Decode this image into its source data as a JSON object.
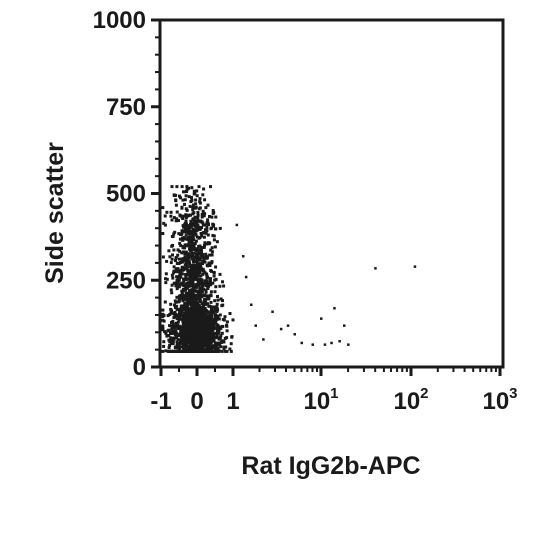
{
  "chart_data": {
    "type": "scatter",
    "title": "",
    "xlabel": "Rat IgG2b-APC",
    "ylabel": "Side scatter",
    "x_scale": "biexponential",
    "ylim": [
      0,
      1000
    ],
    "y_ticks": [
      {
        "value": 0,
        "label": "0"
      },
      {
        "value": 250,
        "label": "250"
      },
      {
        "value": 500,
        "label": "500"
      },
      {
        "value": 750,
        "label": "750"
      },
      {
        "value": 1000,
        "label": "1000"
      }
    ],
    "x_ticks": [
      {
        "value": -1,
        "label": "-1",
        "exp": ""
      },
      {
        "value": 0,
        "label": "0",
        "exp": ""
      },
      {
        "value": 1,
        "label": "1",
        "exp": ""
      },
      {
        "value": 10,
        "label": "10",
        "exp": "1"
      },
      {
        "value": 100,
        "label": "10",
        "exp": "2"
      },
      {
        "value": 1000,
        "label": "10",
        "exp": "3"
      }
    ],
    "grid": false,
    "legend": "none",
    "point_color": "#1a1a1a",
    "populations": [
      {
        "x_center": 0,
        "x_spread": 0.35,
        "y_center": 100,
        "y_spread": 45,
        "count": 1300
      },
      {
        "x_center": -0.15,
        "x_spread": 0.3,
        "y_center": 270,
        "y_spread": 90,
        "count": 700
      },
      {
        "x_center": -0.1,
        "x_spread": 0.3,
        "y_center": 430,
        "y_spread": 50,
        "count": 140
      }
    ],
    "sparse_points": [
      [
        1.1,
        410
      ],
      [
        1.3,
        320
      ],
      [
        1.4,
        260
      ],
      [
        1.6,
        180
      ],
      [
        1.8,
        120
      ],
      [
        2.2,
        80
      ],
      [
        2.8,
        160
      ],
      [
        3.5,
        110
      ],
      [
        4.2,
        120
      ],
      [
        5.0,
        95
      ],
      [
        6.0,
        70
      ],
      [
        8.0,
        65
      ],
      [
        10,
        140
      ],
      [
        11,
        65
      ],
      [
        13,
        70
      ],
      [
        14,
        170
      ],
      [
        16,
        75
      ],
      [
        18,
        120
      ],
      [
        20,
        65
      ],
      [
        40,
        285
      ],
      [
        110,
        290
      ]
    ]
  }
}
